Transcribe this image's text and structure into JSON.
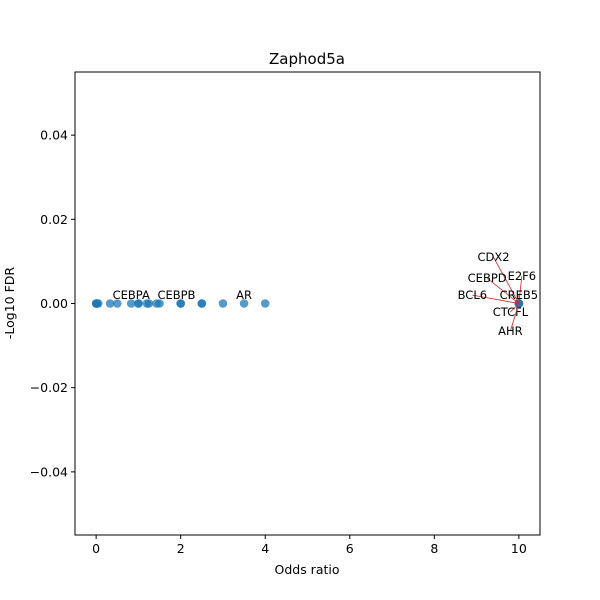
{
  "chart_data": {
    "type": "scatter",
    "title": "Zaphod5a",
    "xlabel": "Odds ratio",
    "ylabel": "-Log10 FDR",
    "xlim": [
      -0.5,
      10.5
    ],
    "ylim": [
      -0.055,
      0.055
    ],
    "xticks": [
      0,
      2,
      4,
      6,
      8,
      10
    ],
    "yticks": [
      -0.04,
      -0.02,
      0.0,
      0.02,
      0.04
    ],
    "xtick_labels": [
      "0",
      "2",
      "4",
      "6",
      "8",
      "10"
    ],
    "ytick_labels": [
      "−0.04",
      "−0.02",
      "0.00",
      "0.02",
      "0.04"
    ],
    "grid": false,
    "point_color": "#1f77b4",
    "annotation_line_color": "#d62728",
    "points": [
      {
        "x": 0.0,
        "y": 0.0
      },
      {
        "x": 0.0,
        "y": 0.0
      },
      {
        "x": 0.02,
        "y": 0.0
      },
      {
        "x": 0.05,
        "y": 0.0
      },
      {
        "x": 0.33,
        "y": 0.0
      },
      {
        "x": 0.5,
        "y": 0.0
      },
      {
        "x": 0.83,
        "y": 0.0
      },
      {
        "x": 1.0,
        "y": 0.0
      },
      {
        "x": 1.0,
        "y": 0.0
      },
      {
        "x": 1.2,
        "y": 0.0
      },
      {
        "x": 1.25,
        "y": 0.0
      },
      {
        "x": 1.43,
        "y": 0.0
      },
      {
        "x": 1.5,
        "y": 0.0
      },
      {
        "x": 2.0,
        "y": 0.0
      },
      {
        "x": 2.0,
        "y": 0.0
      },
      {
        "x": 2.5,
        "y": 0.0
      },
      {
        "x": 2.5,
        "y": 0.0
      },
      {
        "x": 3.0,
        "y": 0.0
      },
      {
        "x": 3.5,
        "y": 0.0
      },
      {
        "x": 4.0,
        "y": 0.0
      },
      {
        "x": 10.0,
        "y": 0.0
      },
      {
        "x": 10.0,
        "y": 0.0
      },
      {
        "x": 10.0,
        "y": 0.0
      },
      {
        "x": 10.0,
        "y": 0.0
      }
    ],
    "annotations": [
      {
        "label": "CEBPA",
        "x": 0.83,
        "y": 0.0,
        "tx": 0.83,
        "ty": 0.002,
        "line": false
      },
      {
        "label": "CEBPB",
        "x": 1.9,
        "y": 0.0,
        "tx": 1.9,
        "ty": 0.002,
        "line": false
      },
      {
        "label": "AR",
        "x": 3.5,
        "y": 0.0,
        "tx": 3.5,
        "ty": 0.002,
        "line": false
      },
      {
        "label": "CDX2",
        "x": 10.0,
        "y": 0.0,
        "tx": 9.4,
        "ty": 0.011,
        "line": true
      },
      {
        "label": "CEBPD",
        "x": 10.0,
        "y": 0.0,
        "tx": 9.25,
        "ty": 0.006,
        "line": true
      },
      {
        "label": "E2F6",
        "x": 10.0,
        "y": 0.0,
        "tx": 10.07,
        "ty": 0.0065,
        "line": true
      },
      {
        "label": "BCL6",
        "x": 10.0,
        "y": 0.0,
        "tx": 8.9,
        "ty": 0.002,
        "line": true
      },
      {
        "label": "CREB5",
        "x": 10.0,
        "y": 0.0,
        "tx": 10.0,
        "ty": 0.002,
        "line": true
      },
      {
        "label": "CTCFL",
        "x": 10.0,
        "y": 0.0,
        "tx": 9.8,
        "ty": -0.002,
        "line": true
      },
      {
        "label": "AHR",
        "x": 10.0,
        "y": 0.0,
        "tx": 9.8,
        "ty": -0.0065,
        "line": true
      }
    ]
  }
}
